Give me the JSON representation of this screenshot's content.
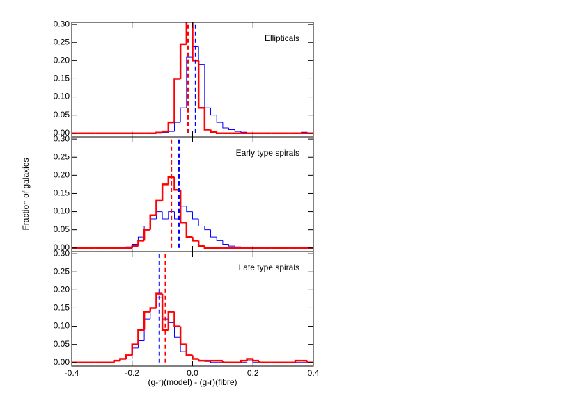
{
  "chart_data": [
    {
      "type": "histogram",
      "title": "Ellipticals",
      "bins": [
        -0.4,
        -0.38,
        -0.36,
        -0.34,
        -0.32,
        -0.3,
        -0.28,
        -0.26,
        -0.24,
        -0.22,
        -0.2,
        -0.18,
        -0.16,
        -0.14,
        -0.12,
        -0.1,
        -0.08,
        -0.06,
        -0.04,
        -0.02,
        0,
        0.02,
        0.04,
        0.06,
        0.08,
        0.1,
        0.12,
        0.14,
        0.16,
        0.18,
        0.2,
        0.22,
        0.24,
        0.26,
        0.28,
        0.3,
        0.32,
        0.34,
        0.36,
        0.38,
        0.4
      ],
      "series": [
        {
          "color": "#0000ff",
          "median": 0.01,
          "values": [
            0,
            0,
            0,
            0,
            0,
            0,
            0,
            0,
            0,
            0,
            0,
            0,
            0,
            0,
            0,
            0.002,
            0.005,
            0.03,
            0.07,
            0.21,
            0.24,
            0.19,
            0.07,
            0.05,
            0.03,
            0.015,
            0.01,
            0.005,
            0.003,
            0,
            0,
            0,
            0,
            0,
            0,
            0,
            0,
            0,
            0.003,
            0
          ]
        },
        {
          "color": "#ff0000",
          "median": -0.015,
          "values": [
            0,
            0,
            0,
            0,
            0,
            0,
            0,
            0,
            0,
            0,
            0,
            0,
            0,
            0,
            0.002,
            0.005,
            0.03,
            0.15,
            0.245,
            0.31,
            0.2,
            0.07,
            0.01,
            0.003,
            0,
            0,
            0,
            0,
            0,
            0,
            0,
            0,
            0,
            0,
            0,
            0,
            0,
            0,
            0,
            0
          ]
        }
      ],
      "xlim": [
        -0.4,
        0.4
      ],
      "ylim": [
        -0.01,
        0.306
      ],
      "yticks": [
        {
          "value": 0,
          "label": "0.00"
        },
        0.05,
        {
          "value": 0.1,
          "label": "0.10"
        },
        0.15,
        {
          "value": 0.2,
          "label": "0.20"
        },
        0.25,
        {
          "value": 0.3,
          "label": "0.30"
        }
      ]
    },
    {
      "type": "histogram",
      "title": "Early type spirals",
      "ylabel": "Fraction of galaxies",
      "bins": [
        -0.4,
        -0.38,
        -0.36,
        -0.34,
        -0.32,
        -0.3,
        -0.28,
        -0.26,
        -0.24,
        -0.22,
        -0.2,
        -0.18,
        -0.16,
        -0.14,
        -0.12,
        -0.1,
        -0.08,
        -0.06,
        -0.04,
        -0.02,
        0,
        0.02,
        0.04,
        0.06,
        0.08,
        0.1,
        0.12,
        0.14,
        0.16,
        0.18,
        0.2,
        0.22,
        0.24,
        0.26,
        0.28,
        0.3,
        0.32,
        0.34,
        0.36,
        0.38,
        0.4
      ],
      "series": [
        {
          "color": "#0000ff",
          "median": -0.045,
          "values": [
            0,
            0,
            0,
            0,
            0,
            0,
            0,
            0,
            0,
            0.003,
            0.01,
            0.03,
            0.06,
            0.08,
            0.1,
            0.08,
            0.1,
            0.08,
            0.115,
            0.1,
            0.08,
            0.06,
            0.05,
            0.03,
            0.02,
            0.01,
            0.005,
            0.003,
            0,
            0,
            0,
            0,
            0,
            0,
            0,
            0,
            0,
            0,
            0,
            0
          ]
        },
        {
          "color": "#ff0000",
          "median": -0.07,
          "values": [
            0,
            0,
            0,
            0,
            0,
            0,
            0,
            0,
            0,
            0,
            0.005,
            0.02,
            0.05,
            0.09,
            0.13,
            0.175,
            0.195,
            0.16,
            0.07,
            0.03,
            0.02,
            0.005,
            0,
            0,
            0,
            0,
            0,
            0,
            0,
            0,
            0,
            0,
            0,
            0,
            0,
            0,
            0,
            0,
            0,
            0
          ]
        }
      ],
      "xlim": [
        -0.4,
        0.4
      ],
      "ylim": [
        -0.01,
        0.306
      ],
      "yticks": [
        {
          "value": 0,
          "label": "0.00"
        },
        0.05,
        {
          "value": 0.1,
          "label": "0.10"
        },
        0.15,
        {
          "value": 0.2,
          "label": "0.20"
        },
        0.25,
        {
          "value": 0.3,
          "label": "0.30"
        }
      ]
    },
    {
      "type": "histogram",
      "title": "Late type spirals",
      "xlabel": "(g-r)(model) - (g-r)(fibre)",
      "bins": [
        -0.4,
        -0.38,
        -0.36,
        -0.34,
        -0.32,
        -0.3,
        -0.28,
        -0.26,
        -0.24,
        -0.22,
        -0.2,
        -0.18,
        -0.16,
        -0.14,
        -0.12,
        -0.1,
        -0.08,
        -0.06,
        -0.04,
        -0.02,
        0,
        0.02,
        0.04,
        0.06,
        0.08,
        0.1,
        0.12,
        0.14,
        0.16,
        0.18,
        0.2,
        0.22,
        0.24,
        0.26,
        0.28,
        0.3,
        0.32,
        0.34,
        0.36,
        0.38,
        0.4
      ],
      "series": [
        {
          "color": "#0000ff",
          "median": -0.11,
          "values": [
            0,
            0,
            0,
            0,
            0,
            0,
            0,
            0.005,
            0.01,
            0.01,
            0.04,
            0.06,
            0.12,
            0.15,
            0.18,
            0.12,
            0.11,
            0.07,
            0.03,
            0.02,
            0.01,
            0.005,
            0.003,
            0,
            0,
            0,
            0,
            0,
            0,
            0.005,
            0,
            0,
            0,
            0,
            0,
            0,
            0,
            0,
            0,
            0
          ]
        },
        {
          "color": "#ff0000",
          "median": -0.09,
          "values": [
            0,
            0,
            0,
            0,
            0,
            0,
            0,
            0.005,
            0.01,
            0.02,
            0.05,
            0.09,
            0.14,
            0.15,
            0.19,
            0.09,
            0.14,
            0.1,
            0.05,
            0.02,
            0.01,
            0.005,
            0.005,
            0.005,
            0.005,
            0,
            0,
            0,
            0.005,
            0.01,
            0.005,
            0,
            0,
            0,
            0,
            0,
            0,
            0.005,
            0.005,
            0
          ]
        }
      ],
      "xlim": [
        -0.4,
        0.4
      ],
      "ylim": [
        -0.01,
        0.306
      ],
      "yticks": [
        {
          "value": 0,
          "label": "0.00"
        },
        0.05,
        {
          "value": 0.1,
          "label": "0.10"
        },
        0.15,
        {
          "value": 0.2,
          "label": "0.20"
        },
        0.25,
        {
          "value": 0.3,
          "label": "0.30"
        }
      ],
      "xticks": [
        -0.4,
        -0.2,
        {
          "value": 0,
          "label": "0.0"
        },
        0.2,
        0.4
      ]
    }
  ]
}
